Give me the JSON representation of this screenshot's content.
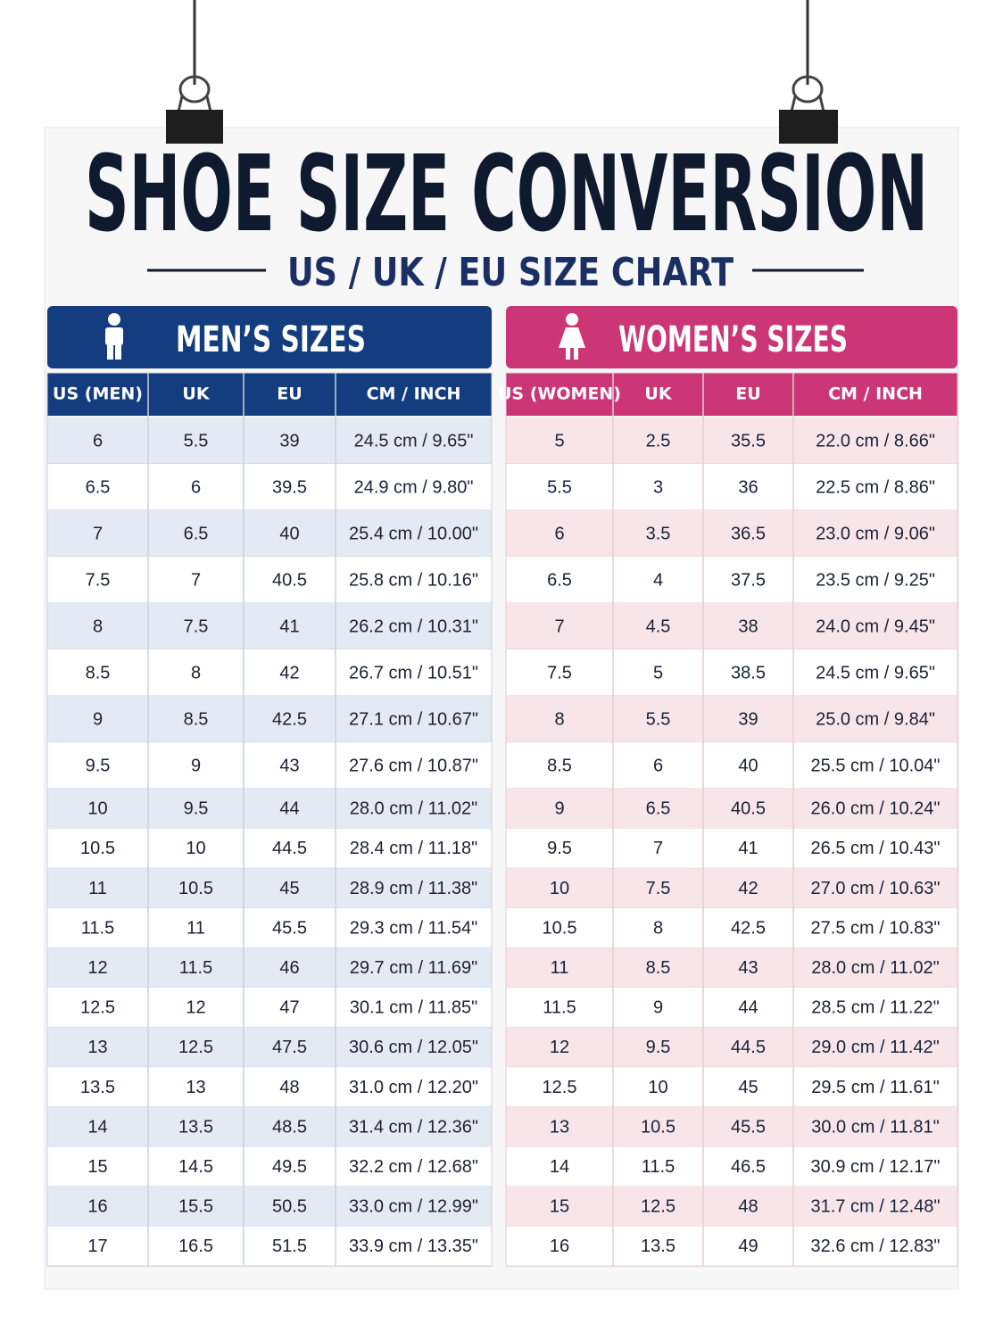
{
  "header": {
    "title": "SHOE SIZE CONVERSION",
    "subtitle": "US / UK / EU SIZE CHART"
  },
  "men": {
    "title": "MEN’S SIZES",
    "columns": [
      "US (MEN)",
      "UK",
      "EU",
      "CM / INCH"
    ],
    "rows": [
      [
        "6",
        "5.5",
        "39",
        "24.5 cm / 9.65\""
      ],
      [
        "6.5",
        "6",
        "39.5",
        "24.9 cm / 9.80\""
      ],
      [
        "7",
        "6.5",
        "40",
        "25.4 cm / 10.00\""
      ],
      [
        "7.5",
        "7",
        "40.5",
        "25.8 cm / 10.16\""
      ],
      [
        "8",
        "7.5",
        "41",
        "26.2 cm / 10.31\""
      ],
      [
        "8.5",
        "8",
        "42",
        "26.7 cm / 10.51\""
      ],
      [
        "9",
        "8.5",
        "42.5",
        "27.1 cm / 10.67\""
      ],
      [
        "9.5",
        "9",
        "43",
        "27.6 cm / 10.87\""
      ],
      [
        "10",
        "9.5",
        "44",
        "28.0 cm / 11.02\""
      ],
      [
        "10.5",
        "10",
        "44.5",
        "28.4 cm / 11.18\""
      ],
      [
        "11",
        "10.5",
        "45",
        "28.9 cm / 11.38\""
      ],
      [
        "11.5",
        "11",
        "45.5",
        "29.3 cm / 11.54\""
      ],
      [
        "12",
        "11.5",
        "46",
        "29.7 cm / 11.69\""
      ],
      [
        "12.5",
        "12",
        "47",
        "30.1 cm / 11.85\""
      ],
      [
        "13",
        "12.5",
        "47.5",
        "30.6 cm / 12.05\""
      ],
      [
        "13.5",
        "13",
        "48",
        "31.0 cm / 12.20\""
      ],
      [
        "14",
        "13.5",
        "48.5",
        "31.4 cm / 12.36\""
      ],
      [
        "15",
        "14.5",
        "49.5",
        "32.2 cm / 12.68\""
      ],
      [
        "16",
        "15.5",
        "50.5",
        "33.0 cm / 12.99\""
      ],
      [
        "17",
        "16.5",
        "51.5",
        "33.9 cm / 13.35\""
      ]
    ]
  },
  "women": {
    "title": "WOMEN’S SIZES",
    "columns": [
      "US (WOMEN)",
      "UK",
      "EU",
      "CM / INCH"
    ],
    "rows": [
      [
        "5",
        "2.5",
        "35.5",
        "22.0 cm / 8.66\""
      ],
      [
        "5.5",
        "3",
        "36",
        "22.5 cm / 8.86\""
      ],
      [
        "6",
        "3.5",
        "36.5",
        "23.0 cm / 9.06\""
      ],
      [
        "6.5",
        "4",
        "37.5",
        "23.5 cm / 9.25\""
      ],
      [
        "7",
        "4.5",
        "38",
        "24.0 cm / 9.45\""
      ],
      [
        "7.5",
        "5",
        "38.5",
        "24.5 cm / 9.65\""
      ],
      [
        "8",
        "5.5",
        "39",
        "25.0 cm / 9.84\""
      ],
      [
        "8.5",
        "6",
        "40",
        "25.5 cm / 10.04\""
      ],
      [
        "9",
        "6.5",
        "40.5",
        "26.0 cm / 10.24\""
      ],
      [
        "9.5",
        "7",
        "41",
        "26.5 cm / 10.43\""
      ],
      [
        "10",
        "7.5",
        "42",
        "27.0 cm / 10.63\""
      ],
      [
        "10.5",
        "8",
        "42.5",
        "27.5 cm / 10.83\""
      ],
      [
        "11",
        "8.5",
        "43",
        "28.0 cm / 11.02\""
      ],
      [
        "11.5",
        "9",
        "44",
        "28.5 cm / 11.22\""
      ],
      [
        "12",
        "9.5",
        "44.5",
        "29.0 cm / 11.42\""
      ],
      [
        "12.5",
        "10",
        "45",
        "29.5 cm / 11.61\""
      ],
      [
        "13",
        "10.5",
        "45.5",
        "30.0 cm / 11.81\""
      ],
      [
        "14",
        "11.5",
        "46.5",
        "30.9 cm / 12.17\""
      ],
      [
        "15",
        "12.5",
        "48",
        "31.7 cm / 12.48\""
      ],
      [
        "16",
        "13.5",
        "49",
        "32.6 cm / 12.83\""
      ]
    ]
  }
}
